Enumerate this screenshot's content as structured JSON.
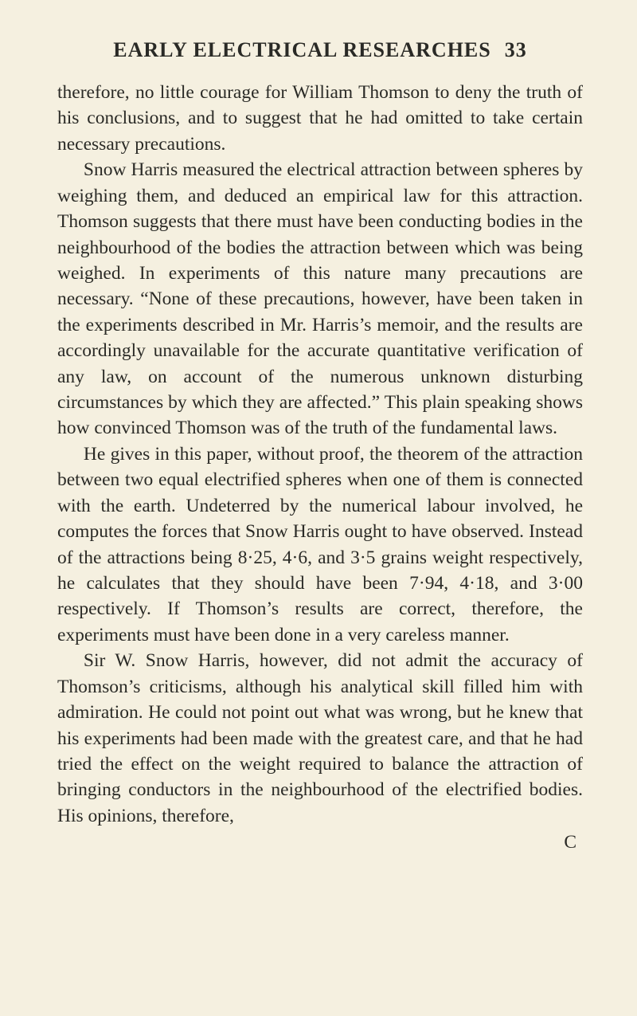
{
  "header": {
    "title": "EARLY ELECTRICAL RESEARCHES",
    "page_number": "33"
  },
  "paragraphs": {
    "p1": "therefore, no little courage for William Thomson to deny the truth of his conclusions, and to suggest that he had omitted to take certain necessary precautions.",
    "p2": "Snow Harris measured the electrical attraction be­tween spheres by weighing them, and deduced an empirical law for this attraction. Thomson suggests that there must have been conducting bodies in the neighbourhood of the bodies the attraction between which was being weighed. In experiments of this nature many precautions are necessary. “None of these precautions, however, have been taken in the experi­ments described in Mr. Harris’s memoir, and the results are accordingly unavailable for the accurate quanti­tative verification of any law, on account of the numer­ous unknown disturbing circumstances by which they are affected.” This plain speaking shows how convinced Thomson was of the truth of the fundamental laws.",
    "p3": "He gives in this paper, without proof, the theorem of the attraction between two equal electrified spheres when one of them is connected with the earth. Un­deterred by the numerical labour involved, he computes the forces that Snow Harris ought to have observed. Instead of the attractions being 8·25, 4·6, and 3·5 grains weight respectively, he calculates that they should have been 7·94, 4·18, and 3·00 respectively. If Thom­son’s results are correct, therefore, the experiments must have been done in a very careless manner.",
    "p4": "Sir W. Snow Harris, however, did not admit the accuracy of Thomson’s criticisms, although his ana­lytical skill filled him with admiration. He could not point out what was wrong, but he knew that his experi­ments had been made with the greatest care, and that he had tried the effect on the weight required to balance the attraction of bringing conductors in the neighbour­hood of the electrified bodies. His opinions, therefore,"
  },
  "catchword": "C",
  "colors": {
    "background": "#f5f0e0",
    "text": "#2a2a26"
  },
  "typography": {
    "header_fontsize": 26,
    "body_fontsize": 23.5,
    "line_height": 1.38
  }
}
